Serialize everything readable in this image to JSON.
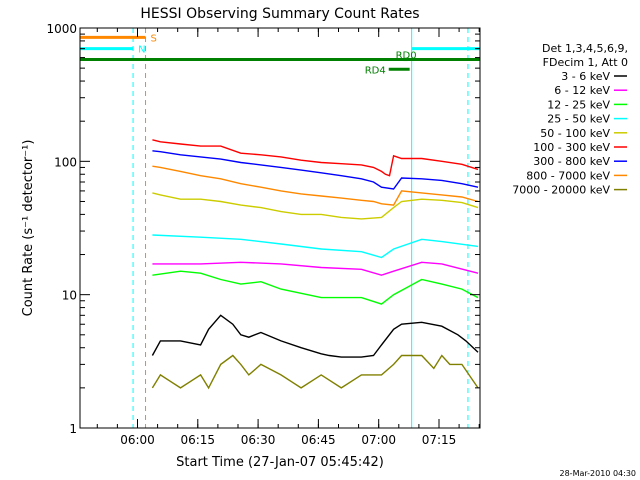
{
  "chart_data": {
    "type": "line",
    "title": "HESSI Observing Summary Count Rates",
    "xlabel": "Start Time (27-Jan-07 05:45:42)",
    "ylabel": "Count Rate (s⁻¹ detector⁻¹)",
    "x_unit": "minutes after 05:45:42",
    "xlim": [
      0,
      99.5
    ],
    "ylim": [
      1,
      1000
    ],
    "yscale": "log",
    "grid": false,
    "legend_position": "top-right",
    "x_ticks": [
      {
        "value": 14.3,
        "label": "06:00"
      },
      {
        "value": 29.3,
        "label": "06:15"
      },
      {
        "value": 44.3,
        "label": "06:30"
      },
      {
        "value": 59.3,
        "label": "06:45"
      },
      {
        "value": 74.3,
        "label": "07:00"
      },
      {
        "value": 89.3,
        "label": "07:15"
      }
    ],
    "y_ticks": [
      {
        "value": 1,
        "label": "1"
      },
      {
        "value": 10,
        "label": "10"
      },
      {
        "value": 100,
        "label": "100"
      },
      {
        "value": 1000,
        "label": "1000"
      }
    ],
    "legend_header": [
      "Det 1,3,4,5,6,9,",
      "FDecim 1, Att 0"
    ],
    "series": [
      {
        "name": "3 - 6 keV",
        "color": "#000000",
        "x": [
          18,
          20,
          25,
          30,
          32,
          35,
          38,
          40,
          42,
          45,
          50,
          55,
          60,
          62,
          65,
          70,
          73,
          75,
          78,
          80,
          85,
          90,
          94,
          96,
          99
        ],
        "values": [
          3.5,
          4.5,
          4.5,
          4.2,
          5.5,
          7,
          6,
          5,
          4.8,
          5.2,
          4.5,
          4,
          3.6,
          3.5,
          3.4,
          3.4,
          3.5,
          4.2,
          5.5,
          6,
          6.2,
          5.8,
          5,
          4.5,
          3.7
        ]
      },
      {
        "name": "6 - 12 keV",
        "color": "#ff00ff",
        "x": [
          18,
          30,
          40,
          50,
          60,
          70,
          75,
          78,
          85,
          90,
          99
        ],
        "values": [
          17,
          17,
          17.5,
          17,
          16,
          15.5,
          14,
          15,
          17.5,
          17,
          14.5
        ]
      },
      {
        "name": "12 - 25 keV",
        "color": "#00ff00",
        "x": [
          18,
          25,
          30,
          35,
          40,
          45,
          50,
          60,
          70,
          75,
          78,
          85,
          90,
          95,
          99
        ],
        "values": [
          14,
          15,
          14.5,
          13,
          12,
          12.5,
          11,
          9.5,
          9.5,
          8.5,
          10,
          13,
          12,
          11,
          9.5
        ]
      },
      {
        "name": "25 - 50 keV",
        "color": "#00ffff",
        "x": [
          18,
          30,
          40,
          50,
          60,
          70,
          75,
          78,
          85,
          90,
          99
        ],
        "values": [
          28,
          27,
          26,
          24,
          22,
          21,
          19,
          22,
          26,
          25,
          23
        ]
      },
      {
        "name": "50 - 100 keV",
        "color": "#cccc00",
        "x": [
          18,
          20,
          25,
          30,
          35,
          40,
          45,
          50,
          55,
          60,
          65,
          70,
          75,
          78,
          80,
          85,
          90,
          95,
          99
        ],
        "values": [
          58,
          56,
          52,
          52,
          50,
          47,
          45,
          42,
          40,
          40,
          38,
          37,
          38,
          45,
          50,
          52,
          51,
          49,
          45
        ]
      },
      {
        "name": "100 - 300 keV",
        "color": "#ff0000",
        "x": [
          18,
          20,
          25,
          30,
          35,
          40,
          45,
          50,
          55,
          60,
          65,
          70,
          73,
          75,
          76,
          77,
          78,
          80,
          85,
          90,
          95,
          99
        ],
        "values": [
          145,
          140,
          135,
          130,
          130,
          115,
          112,
          108,
          102,
          98,
          96,
          94,
          90,
          84,
          80,
          78,
          110,
          105,
          105,
          100,
          95,
          87
        ]
      },
      {
        "name": "300 - 800 keV",
        "color": "#0000ff",
        "x": [
          18,
          20,
          25,
          30,
          35,
          40,
          45,
          50,
          55,
          60,
          65,
          70,
          73,
          75,
          78,
          80,
          85,
          90,
          95,
          99
        ],
        "values": [
          120,
          118,
          112,
          108,
          104,
          98,
          94,
          90,
          86,
          82,
          78,
          74,
          70,
          64,
          62,
          75,
          74,
          72,
          68,
          64
        ]
      },
      {
        "name": "800 - 7000 keV",
        "color": "#ff8800",
        "x": [
          18,
          20,
          25,
          30,
          35,
          40,
          45,
          50,
          55,
          60,
          65,
          70,
          73,
          75,
          78,
          80,
          85,
          90,
          95,
          99
        ],
        "values": [
          92,
          90,
          84,
          78,
          74,
          68,
          64,
          60,
          57,
          55,
          53,
          51,
          50,
          48,
          47,
          60,
          58,
          56,
          54,
          50
        ]
      },
      {
        "name": "7000 - 20000 keV",
        "color": "#808000",
        "x": [
          18,
          20,
          25,
          30,
          32,
          35,
          38,
          40,
          42,
          45,
          50,
          55,
          60,
          65,
          70,
          75,
          78,
          80,
          85,
          88,
          90,
          92,
          95,
          99
        ],
        "values": [
          2,
          2.5,
          2,
          2.5,
          2,
          3,
          3.5,
          3,
          2.5,
          3,
          2.5,
          2,
          2.5,
          2,
          2.5,
          2.5,
          3,
          3.5,
          3.5,
          2.8,
          3.5,
          3,
          3,
          2
        ]
      }
    ],
    "state_bars": [
      {
        "label": "S",
        "color": "#ff8800",
        "start": 0,
        "end": 16.3,
        "level": 850
      },
      {
        "label": "N",
        "color": "#00ffff",
        "start": 0,
        "end": 13.2,
        "level": 700
      },
      {
        "label": "",
        "color": "#00ffff",
        "start": 82.5,
        "end": 99.5,
        "level": 700
      },
      {
        "label": "",
        "color": "#008000",
        "start": 0,
        "end": 99.5,
        "level": 580
      },
      {
        "label": "RD4",
        "color": "#008000",
        "start": 76.8,
        "end": 82.0,
        "level": 490
      },
      {
        "label": "RD0",
        "color": "#008000",
        "start": 80.5,
        "end": 81.5,
        "level": 580
      }
    ],
    "vertical_markers": [
      {
        "x": 0,
        "color": "#00ffff",
        "style": "solid"
      },
      {
        "x": 13.2,
        "color": "#00ffff",
        "style": "dashed"
      },
      {
        "x": 16.3,
        "color": "#ff8800",
        "style": "dashed"
      },
      {
        "x": 82.5,
        "color": "#00ffff",
        "style": "solid"
      },
      {
        "x": 96.5,
        "color": "#00ffff",
        "style": "dashed"
      }
    ],
    "footer_timestamp": "28-Mar-2010 04:30"
  }
}
